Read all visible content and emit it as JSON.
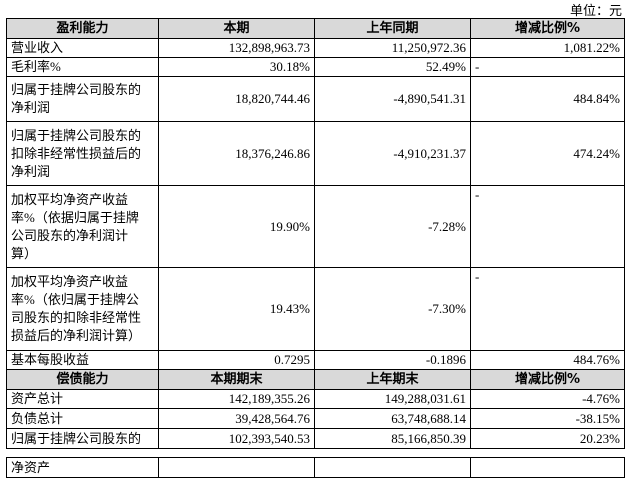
{
  "unit": "单位：元",
  "sections": [
    {
      "header": [
        "盈利能力",
        "本期",
        "上年同期",
        "增减比例%"
      ],
      "rows": [
        [
          [
            "营业收入"
          ],
          "132,898,963.73",
          "11,250,972.36",
          "1,081.22%"
        ],
        [
          [
            "毛利率%"
          ],
          "30.18%",
          "52.49%",
          "-"
        ],
        [
          [
            "归属于挂牌公司股东的",
            "净利润"
          ],
          "18,820,744.46",
          "-4,890,541.31",
          "484.84%"
        ],
        [
          [
            "归属于挂牌公司股东的",
            "扣除非经常性损益后的",
            "净利润"
          ],
          "18,376,246.86",
          "-4,910,231.37",
          "474.24%"
        ],
        [
          [
            "加权平均净资产收益",
            "率%（依据归属于挂牌",
            "公司股东的净利润计",
            "算）"
          ],
          "19.90%",
          "-7.28%",
          "-"
        ],
        [
          [
            "加权平均净资产收益",
            "率%（依归属于挂牌公",
            "司股东的扣除非经常性",
            "损益后的净利润计算）"
          ],
          "19.43%",
          "-7.30%",
          "-"
        ],
        [
          [
            "基本每股收益"
          ],
          "0.7295",
          "-0.1896",
          "484.76%"
        ]
      ]
    },
    {
      "header": [
        "偿债能力",
        "本期期末",
        "上年期末",
        "增减比例%"
      ],
      "rows": [
        [
          [
            "资产总计"
          ],
          "142,189,355.26",
          "149,288,031.61",
          "-4.76%"
        ],
        [
          [
            "负债总计"
          ],
          "39,428,564.76",
          "63,748,688.14",
          "-38.15%"
        ],
        [
          [
            "归属于挂牌公司股东的"
          ],
          "102,393,540.53",
          "85,166,850.39",
          "20.23%"
        ],
        [
          [
            "净资产"
          ]
        ]
      ]
    }
  ]
}
